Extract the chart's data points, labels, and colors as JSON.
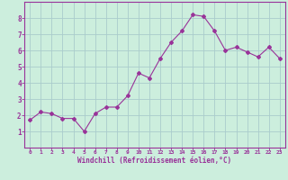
{
  "x": [
    0,
    1,
    2,
    3,
    4,
    5,
    6,
    7,
    8,
    9,
    10,
    11,
    12,
    13,
    14,
    15,
    16,
    17,
    18,
    19,
    20,
    21,
    22,
    23
  ],
  "y": [
    1.7,
    2.2,
    2.1,
    1.8,
    1.8,
    1.0,
    2.1,
    2.5,
    2.5,
    3.2,
    4.6,
    4.3,
    5.5,
    6.5,
    7.2,
    8.2,
    8.1,
    7.2,
    6.0,
    6.2,
    5.9,
    5.6,
    6.2,
    5.5
  ],
  "line_color": "#993399",
  "marker": "D",
  "marker_size": 2,
  "bg_color": "#cceedd",
  "grid_color": "#aacccc",
  "xlabel": "Windchill (Refroidissement éolien,°C)",
  "xlabel_color": "#993399",
  "xlim": [
    -0.5,
    23.5
  ],
  "ylim": [
    0,
    9
  ],
  "yticks": [
    1,
    2,
    3,
    4,
    5,
    6,
    7,
    8
  ],
  "xticks": [
    0,
    1,
    2,
    3,
    4,
    5,
    6,
    7,
    8,
    9,
    10,
    11,
    12,
    13,
    14,
    15,
    16,
    17,
    18,
    19,
    20,
    21,
    22,
    23
  ],
  "tick_color": "#993399",
  "axis_color": "#993399",
  "font_family": "monospace"
}
